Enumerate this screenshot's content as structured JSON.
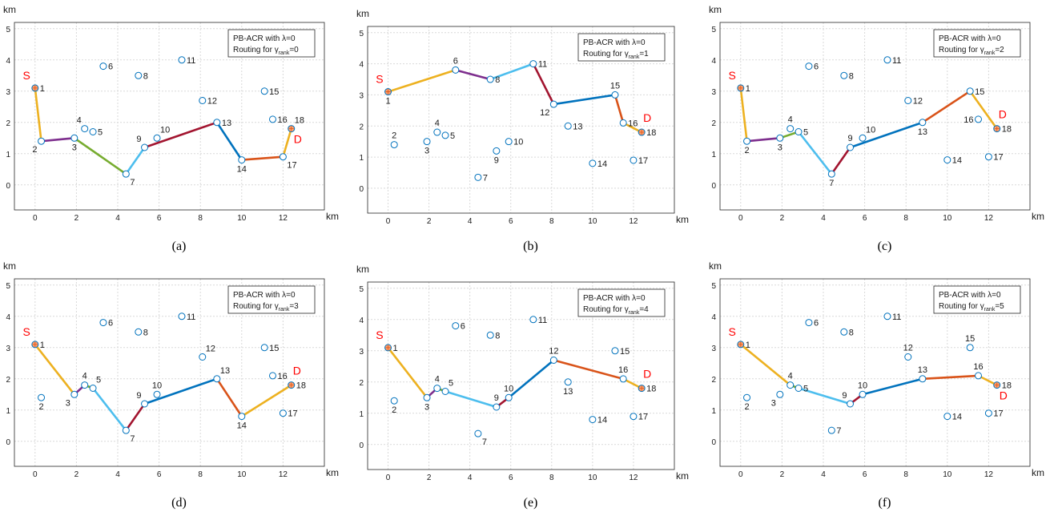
{
  "nodes": [
    {
      "id": "1",
      "x": 0.0,
      "y": 3.1
    },
    {
      "id": "2",
      "x": 0.3,
      "y": 1.4
    },
    {
      "id": "3",
      "x": 1.9,
      "y": 1.5
    },
    {
      "id": "4",
      "x": 2.4,
      "y": 1.8
    },
    {
      "id": "5",
      "x": 2.8,
      "y": 1.7
    },
    {
      "id": "6",
      "x": 3.3,
      "y": 3.8
    },
    {
      "id": "7",
      "x": 4.4,
      "y": 0.35
    },
    {
      "id": "8",
      "x": 5.0,
      "y": 3.5
    },
    {
      "id": "9",
      "x": 5.3,
      "y": 1.2
    },
    {
      "id": "10",
      "x": 5.9,
      "y": 1.5
    },
    {
      "id": "11",
      "x": 7.1,
      "y": 4.0
    },
    {
      "id": "12",
      "x": 8.1,
      "y": 2.7
    },
    {
      "id": "13",
      "x": 8.8,
      "y": 2.0
    },
    {
      "id": "14",
      "x": 10.0,
      "y": 0.8
    },
    {
      "id": "15",
      "x": 11.1,
      "y": 3.0
    },
    {
      "id": "16",
      "x": 11.5,
      "y": 2.1
    },
    {
      "id": "17",
      "x": 12.0,
      "y": 0.9
    },
    {
      "id": "18",
      "x": 12.4,
      "y": 1.8
    }
  ],
  "source_label": "S",
  "dest_label": "D",
  "legend_line1": "PB-ACR with λ=0",
  "legend_line2_prefix": "Routing for γ",
  "legend_subscript": "rank",
  "axis": {
    "x_unit": "km",
    "y_unit": "km",
    "xlim": [
      -1,
      14
    ],
    "ylim": [
      -0.8,
      5.2
    ],
    "xticks": [
      0,
      2,
      4,
      6,
      8,
      10,
      12
    ],
    "yticks": [
      0,
      1,
      2,
      3,
      4,
      5
    ],
    "grid": true
  },
  "colors": {
    "node_edge": "#0072bd",
    "endpoint_fill": "#ff9f6b",
    "endpoint_text": "#ff0000",
    "yellow": "#edb120",
    "purple": "#7e2f8e",
    "green": "#77ac30",
    "cyan": "#4dbeee",
    "brown": "#a2142f",
    "blue": "#0072bd",
    "orange": "#d95319"
  },
  "chart_data": [
    {
      "type": "scatter",
      "caption": "(a)",
      "gamma_rank": "0",
      "path": [
        "1",
        "2",
        "3",
        "7",
        "9",
        "13",
        "14",
        "17",
        "18"
      ],
      "segment_colors": [
        "yellow",
        "purple",
        "green",
        "cyan",
        "brown",
        "blue",
        "orange",
        "yellow"
      ],
      "labels": {
        "1": "r",
        "2": "bl",
        "3": "b",
        "4": "tl",
        "5": "r",
        "6": "r",
        "7": "br",
        "8": "r",
        "9": "tl",
        "10": "tr",
        "11": "r",
        "12": "r",
        "13": "r",
        "14": "b",
        "15": "r",
        "16": "r",
        "17": "br",
        "18": "tr"
      },
      "s_pos": "tl",
      "d_pos": "br"
    },
    {
      "type": "scatter",
      "caption": "(b)",
      "gamma_rank": "1",
      "path": [
        "1",
        "6",
        "8",
        "11",
        "12",
        "15",
        "16",
        "18"
      ],
      "segment_colors": [
        "yellow",
        "purple",
        "cyan",
        "brown",
        "blue",
        "orange",
        "yellow"
      ],
      "labels": {
        "1": "b",
        "2": "t",
        "3": "b",
        "4": "t",
        "5": "r",
        "6": "t",
        "7": "r",
        "8": "r",
        "9": "b",
        "10": "r",
        "11": "r",
        "12": "bl",
        "13": "r",
        "14": "r",
        "15": "t",
        "16": "r",
        "17": "r",
        "18": "r"
      },
      "s_pos": "tl",
      "d_pos": "tr"
    },
    {
      "type": "scatter",
      "caption": "(c)",
      "gamma_rank": "2",
      "path": [
        "1",
        "2",
        "3",
        "5",
        "7",
        "9",
        "13",
        "15",
        "18"
      ],
      "segment_colors": [
        "yellow",
        "purple",
        "green",
        "cyan",
        "brown",
        "blue",
        "orange",
        "yellow"
      ],
      "labels": {
        "1": "r",
        "2": "b",
        "3": "b",
        "4": "t",
        "5": "r",
        "6": "r",
        "7": "b",
        "8": "r",
        "9": "t",
        "10": "tr",
        "11": "r",
        "12": "r",
        "13": "b",
        "14": "r",
        "15": "r",
        "16": "l",
        "17": "r",
        "18": "r"
      },
      "s_pos": "tl",
      "d_pos": "tr"
    },
    {
      "type": "scatter",
      "caption": "(d)",
      "gamma_rank": "3",
      "path": [
        "1",
        "3",
        "4",
        "5",
        "7",
        "9",
        "13",
        "14",
        "18"
      ],
      "segment_colors": [
        "yellow",
        "purple",
        "green",
        "cyan",
        "brown",
        "blue",
        "orange",
        "yellow"
      ],
      "labels": {
        "1": "r",
        "2": "b",
        "3": "bl",
        "4": "t",
        "5": "tr",
        "6": "r",
        "7": "br",
        "8": "r",
        "9": "tl",
        "10": "t",
        "11": "r",
        "12": "tr",
        "13": "tr",
        "14": "b",
        "15": "r",
        "16": "r",
        "17": "r",
        "18": "r"
      },
      "s_pos": "tl",
      "d_pos": "tr"
    },
    {
      "type": "scatter",
      "caption": "(e)",
      "gamma_rank": "4",
      "path": [
        "1",
        "3",
        "4",
        "5",
        "9",
        "10",
        "12",
        "16",
        "18"
      ],
      "segment_colors": [
        "yellow",
        "purple",
        "green",
        "cyan",
        "brown",
        "blue",
        "orange",
        "yellow"
      ],
      "labels": {
        "1": "r",
        "2": "b",
        "3": "b",
        "4": "t",
        "5": "tr",
        "6": "r",
        "7": "br",
        "8": "r",
        "9": "t",
        "10": "t",
        "11": "r",
        "12": "t",
        "13": "b",
        "14": "r",
        "15": "r",
        "16": "t",
        "17": "r",
        "18": "r"
      },
      "s_pos": "tl",
      "d_pos": "tr"
    },
    {
      "type": "scatter",
      "caption": "(f)",
      "gamma_rank": "5",
      "path": [
        "1",
        "4",
        "5",
        "9",
        "10",
        "13",
        "16",
        "18"
      ],
      "segment_colors": [
        "yellow",
        "green",
        "cyan",
        "brown",
        "blue",
        "orange",
        "yellow"
      ],
      "labels": {
        "1": "r",
        "2": "b",
        "3": "bl",
        "4": "t",
        "5": "r",
        "6": "r",
        "7": "r",
        "8": "r",
        "9": "tl",
        "10": "t",
        "11": "r",
        "12": "t",
        "13": "t",
        "14": "r",
        "15": "t",
        "16": "t",
        "17": "r",
        "18": "r"
      },
      "s_pos": "tl",
      "d_pos": "br"
    }
  ]
}
